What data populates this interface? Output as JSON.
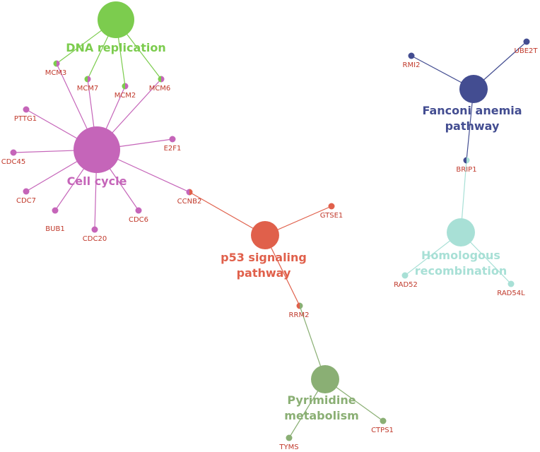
{
  "colors": {
    "dna_replication": "#7ccc4e",
    "cell_cycle": "#c565b9",
    "fanconi": "#434d91",
    "p53": "#e0604b",
    "homologous": "#a8e0d6",
    "pyrimidine": "#8aaf74",
    "gene_label": "#c0392b"
  },
  "pathways": [
    {
      "id": "dna",
      "lines": [
        "DNA replication"
      ],
      "color_key": "dna_replication"
    },
    {
      "id": "cell",
      "lines": [
        "Cell cycle"
      ],
      "color_key": "cell_cycle"
    },
    {
      "id": "fanconi",
      "lines": [
        "Fanconi anemia",
        "pathway"
      ],
      "color_key": "fanconi"
    },
    {
      "id": "p53",
      "lines": [
        "p53 signaling",
        "pathway"
      ],
      "color_key": "p53"
    },
    {
      "id": "homologous",
      "lines": [
        "Homologous",
        "recombination"
      ],
      "color_key": "homologous"
    },
    {
      "id": "pyrimidine",
      "lines": [
        "Pyrimidine",
        "metabolism"
      ],
      "color_key": "pyrimidine"
    }
  ],
  "genes": [
    {
      "id": "MCM3",
      "label": "MCM3",
      "pathways": [
        "dna",
        "cell"
      ]
    },
    {
      "id": "MCM7",
      "label": "MCM7",
      "pathways": [
        "dna",
        "cell"
      ]
    },
    {
      "id": "MCM2",
      "label": "MCM2",
      "pathways": [
        "dna",
        "cell"
      ]
    },
    {
      "id": "MCM6",
      "label": "MCM6",
      "pathways": [
        "dna",
        "cell"
      ]
    },
    {
      "id": "PTTG1",
      "label": "PTTG1",
      "pathways": [
        "cell"
      ]
    },
    {
      "id": "CDC45",
      "label": "CDC45",
      "pathways": [
        "cell"
      ]
    },
    {
      "id": "CDC7",
      "label": "CDC7",
      "pathways": [
        "cell"
      ]
    },
    {
      "id": "BUB1",
      "label": "BUB1",
      "pathways": [
        "cell"
      ]
    },
    {
      "id": "CDC20",
      "label": "CDC20",
      "pathways": [
        "cell"
      ]
    },
    {
      "id": "CDC6",
      "label": "CDC6",
      "pathways": [
        "cell"
      ]
    },
    {
      "id": "E2F1",
      "label": "E2F1",
      "pathways": [
        "cell"
      ]
    },
    {
      "id": "CCNB2",
      "label": "CCNB2",
      "pathways": [
        "cell",
        "p53"
      ]
    },
    {
      "id": "GTSE1",
      "label": "GTSE1",
      "pathways": [
        "p53"
      ]
    },
    {
      "id": "RRM2",
      "label": "RRM2",
      "pathways": [
        "p53",
        "pyrimidine"
      ]
    },
    {
      "id": "CTPS1",
      "label": "CTPS1",
      "pathways": [
        "pyrimidine"
      ]
    },
    {
      "id": "TYMS",
      "label": "TYMS",
      "pathways": [
        "pyrimidine"
      ]
    },
    {
      "id": "RMI2",
      "label": "RMI2",
      "pathways": [
        "fanconi"
      ]
    },
    {
      "id": "UBE2T",
      "label": "UBE2T",
      "pathways": [
        "fanconi"
      ]
    },
    {
      "id": "BRIP1",
      "label": "BRIP1",
      "pathways": [
        "fanconi",
        "homologous"
      ]
    },
    {
      "id": "RAD52",
      "label": "RAD52",
      "pathways": [
        "homologous"
      ]
    },
    {
      "id": "RAD54L",
      "label": "RAD54L",
      "pathways": [
        "homologous"
      ]
    }
  ]
}
